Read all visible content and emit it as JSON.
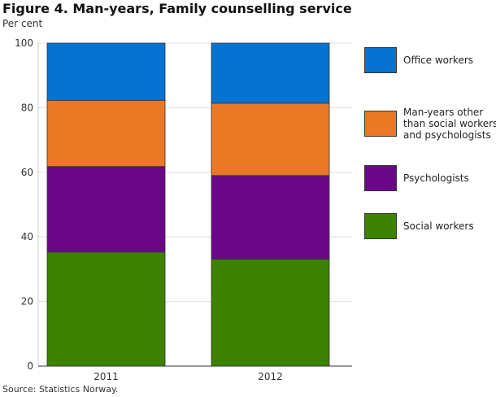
{
  "chart_data": {
    "type": "bar",
    "stacked": true,
    "title": "Figure 4. Man-years, Family counselling service",
    "ylabel": "Per cent",
    "xlabel": "",
    "source": "Source: Statistics Norway.",
    "categories": [
      "2011",
      "2012"
    ],
    "ylim": [
      0,
      100
    ],
    "yticks": [
      "0",
      "20",
      "40",
      "60",
      "80",
      "100"
    ],
    "grid": true,
    "legend_position": "right",
    "series": [
      {
        "name": "Social workers",
        "color": "#3d8200",
        "values": [
          35.3,
          33.1
        ]
      },
      {
        "name": "Psychologists",
        "color": "#6a0888",
        "values": [
          26.5,
          25.9
        ]
      },
      {
        "name": "Man-years other than social workers and psychologists",
        "color": "#ea7825",
        "values": [
          20.5,
          22.4
        ]
      },
      {
        "name": "Office workers",
        "color": "#0773d0",
        "values": [
          17.7,
          18.6
        ]
      }
    ]
  }
}
